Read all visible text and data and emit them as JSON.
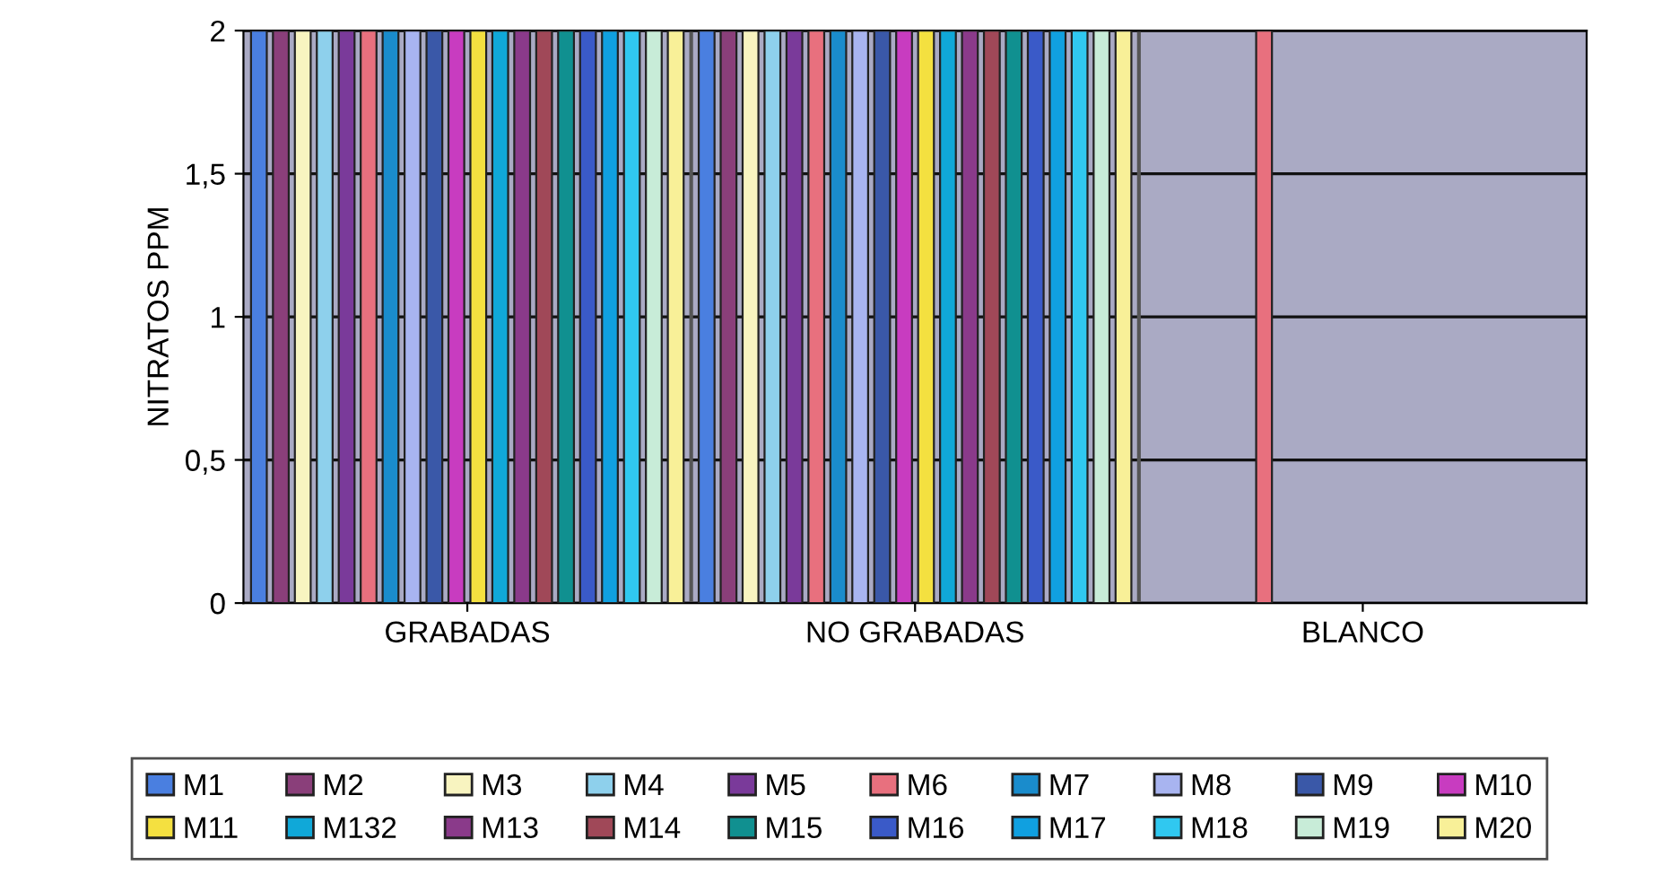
{
  "chart_data": {
    "type": "bar",
    "ylabel": "NITRATOS PPM",
    "categories": [
      "GRABADAS",
      "NO GRABADAS",
      "BLANCO"
    ],
    "series": [
      {
        "name": "M1",
        "color": "#4a7fe0",
        "values": [
          2,
          2,
          null
        ]
      },
      {
        "name": "M2",
        "color": "#8a3f7a",
        "values": [
          2,
          2,
          null
        ]
      },
      {
        "name": "M3",
        "color": "#f8f4c0",
        "values": [
          2,
          2,
          null
        ]
      },
      {
        "name": "M4",
        "color": "#8ed0ec",
        "values": [
          2,
          2,
          null
        ]
      },
      {
        "name": "M5",
        "color": "#7a3a9a",
        "values": [
          2,
          2,
          null
        ]
      },
      {
        "name": "M6",
        "color": "#e8707e",
        "values": [
          2,
          2,
          2
        ]
      },
      {
        "name": "M7",
        "color": "#1a8ccc",
        "values": [
          2,
          2,
          null
        ]
      },
      {
        "name": "M8",
        "color": "#a8b4f0",
        "values": [
          2,
          2,
          null
        ]
      },
      {
        "name": "M9",
        "color": "#3a58a8",
        "values": [
          2,
          2,
          null
        ]
      },
      {
        "name": "M10",
        "color": "#c83cc0",
        "values": [
          2,
          2,
          null
        ]
      },
      {
        "name": "M11",
        "color": "#f4e040",
        "values": [
          2,
          2,
          null
        ]
      },
      {
        "name": "M132",
        "color": "#10a8d8",
        "values": [
          2,
          2,
          null
        ]
      },
      {
        "name": "M13",
        "color": "#8a3a8a",
        "values": [
          2,
          2,
          null
        ]
      },
      {
        "name": "M14",
        "color": "#a04858",
        "values": [
          2,
          2,
          null
        ]
      },
      {
        "name": "M15",
        "color": "#109090",
        "values": [
          2,
          2,
          null
        ]
      },
      {
        "name": "M16",
        "color": "#3a5ac8",
        "values": [
          2,
          2,
          null
        ]
      },
      {
        "name": "M17",
        "color": "#10a0e0",
        "values": [
          2,
          2,
          null
        ]
      },
      {
        "name": "M18",
        "color": "#30c8f0",
        "values": [
          2,
          2,
          null
        ]
      },
      {
        "name": "M19",
        "color": "#c8ecd8",
        "values": [
          2,
          2,
          null
        ]
      },
      {
        "name": "M20",
        "color": "#f8f098",
        "values": [
          2,
          2,
          null
        ]
      }
    ],
    "ylim": [
      0,
      2
    ],
    "yticks": [
      0,
      {
        "value": 0.5,
        "label": "0,5"
      },
      1,
      {
        "value": 1.5,
        "label": "1,5"
      },
      2
    ],
    "grid": "y",
    "legend": "bottom"
  }
}
